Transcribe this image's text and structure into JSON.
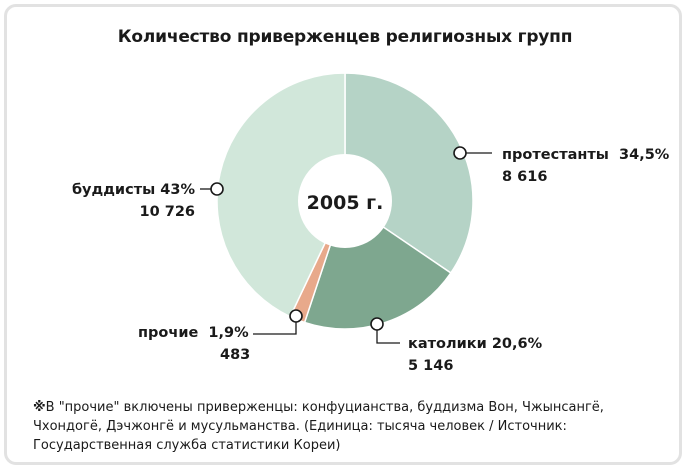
{
  "chart_data": {
    "type": "pie",
    "title": "Количество приверженцев религиозных групп",
    "center_label": "2005 г.",
    "slices": [
      {
        "name": "протестанты",
        "percent_label": "34,5%",
        "value_label": "8 616",
        "value": 8616,
        "color": "#b5d3c6"
      },
      {
        "name": "католики",
        "percent_label": "20,6%",
        "value_label": "5 146",
        "value": 5146,
        "color": "#7ea78f"
      },
      {
        "name": "прочие",
        "percent_label": "1,9%",
        "value_label": "483",
        "value": 483,
        "color": "#e8a98b"
      },
      {
        "name": "буддисты",
        "percent_label": "43%",
        "value_label": "10 726",
        "value": 10726,
        "color": "#d1e7da"
      }
    ]
  },
  "footnote": {
    "mark": "※",
    "text": "В \"прочие\" включены приверженцы: конфуцианства, буддизма Вон, Чжынсангё, Чхондогё, Дэчжонгё и мусульманства.   (Единица: тысяча человек / Источник: Государственная служба статистики Кореи)"
  }
}
